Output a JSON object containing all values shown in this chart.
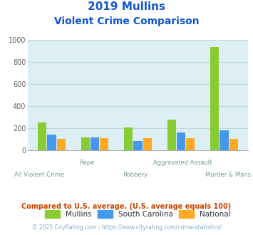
{
  "title_line1": "2019 Mullins",
  "title_line2": "Violent Crime Comparison",
  "categories": [
    "All Violent Crime",
    "Rape",
    "Robbery",
    "Aggravated Assault",
    "Murder & Mans..."
  ],
  "series": {
    "Mullins": [
      252,
      118,
      205,
      280,
      935
    ],
    "South Carolina": [
      142,
      118,
      88,
      160,
      182
    ],
    "National": [
      105,
      108,
      108,
      108,
      105
    ]
  },
  "colors": {
    "Mullins": "#88cc33",
    "South Carolina": "#4499ee",
    "National": "#ffaa22"
  },
  "ylim": [
    0,
    1000
  ],
  "yticks": [
    0,
    200,
    400,
    600,
    800,
    1000
  ],
  "background_color": "#ddeef4",
  "grid_color": "#c0d8dc",
  "title_color": "#1155cc",
  "subtitle_note": "Compared to U.S. average. (U.S. average equals 100)",
  "footer": "© 2025 CityRating.com - https://www.cityrating.com/crime-statistics/",
  "subtitle_color": "#cc4400",
  "footer_color": "#88aacc",
  "label_top": [
    "",
    "Rape",
    "",
    "Aggravated Assault",
    ""
  ],
  "label_bottom": [
    "All Violent Crime",
    "",
    "Robbery",
    "",
    "Murder & Mans..."
  ]
}
